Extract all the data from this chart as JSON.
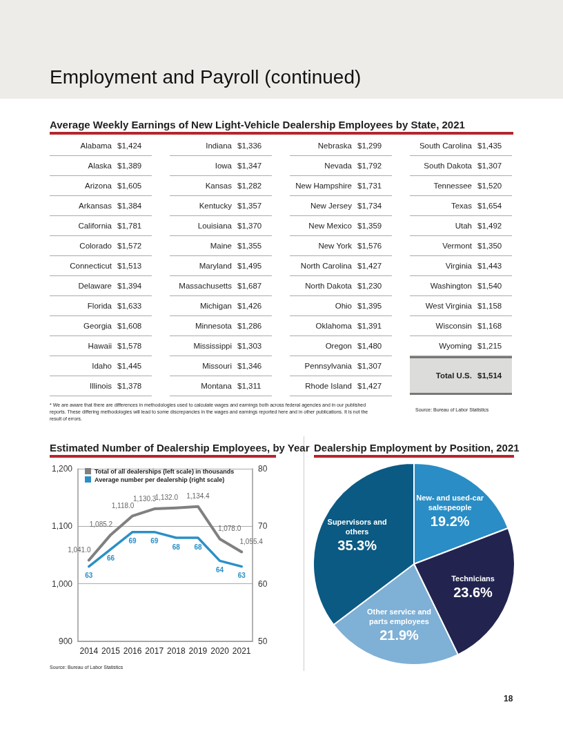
{
  "chart_data": [
    {
      "type": "other",
      "title": "Average Weekly Earnings of New Light-Vehicle Dealership Employees by State, 2021",
      "categories": [
        "Alabama",
        "Alaska",
        "Arizona",
        "Arkansas",
        "California",
        "Colorado",
        "Connecticut",
        "Delaware",
        "Florida",
        "Georgia",
        "Hawaii",
        "Idaho",
        "Illinois",
        "Indiana",
        "Iowa",
        "Kansas",
        "Kentucky",
        "Louisiana",
        "Maine",
        "Maryland",
        "Massachusetts",
        "Michigan",
        "Minnesota",
        "Mississippi",
        "Missouri",
        "Montana",
        "Nebraska",
        "Nevada",
        "New Hampshire",
        "New Jersey",
        "New Mexico",
        "New York",
        "North Carolina",
        "North Dakota",
        "Ohio",
        "Oklahoma",
        "Oregon",
        "Pennsylvania",
        "Rhode Island",
        "South Carolina",
        "South Dakota",
        "Tennessee",
        "Texas",
        "Utah",
        "Vermont",
        "Virginia",
        "Washington",
        "West Virginia",
        "Wisconsin",
        "Wyoming",
        "Total U.S."
      ],
      "values": [
        1424,
        1389,
        1605,
        1384,
        1781,
        1572,
        1513,
        1394,
        1633,
        1608,
        1578,
        1445,
        1378,
        1336,
        1347,
        1282,
        1357,
        1370,
        1355,
        1495,
        1687,
        1426,
        1286,
        1303,
        1346,
        1311,
        1299,
        1792,
        1731,
        1734,
        1359,
        1576,
        1427,
        1230,
        1395,
        1391,
        1480,
        1307,
        1427,
        1435,
        1307,
        1520,
        1654,
        1492,
        1350,
        1443,
        1540,
        1158,
        1168,
        1215,
        1514
      ],
      "value_labels": [
        "$1,424",
        "$1,389",
        "$1,605",
        "$1,384",
        "$1,781",
        "$1,572",
        "$1,513",
        "$1,394",
        "$1,633",
        "$1,608",
        "$1,578",
        "$1,445",
        "$1,378",
        "$1,336",
        "$1,347",
        "$1,282",
        "$1,357",
        "$1,370",
        "$1,355",
        "$1,495",
        "$1,687",
        "$1,426",
        "$1,286",
        "$1,303",
        "$1,346",
        "$1,311",
        "$1,299",
        "$1,792",
        "$1,731",
        "$1,734",
        "$1,359",
        "$1,576",
        "$1,427",
        "$1,230",
        "$1,395",
        "$1,391",
        "$1,480",
        "$1,307",
        "$1,427",
        "$1,435",
        "$1,307",
        "$1,520",
        "$1,654",
        "$1,492",
        "$1,350",
        "$1,443",
        "$1,540",
        "$1,158",
        "$1,168",
        "$1,215",
        "$1,514"
      ],
      "annotations": [
        "Employment and Payroll (continued)",
        "* We are aware that there are differences in methodologies used to calculate wages and earnings both across federal agencies and in our published reports. These differing methodologies will lead to some discrepancies in the wages and earnings reported here and in other publications. It is not the result of errors.",
        "Source: Bureau of Labor Statistics",
        "18"
      ]
    },
    {
      "type": "line",
      "title": "Estimated Number of Dealership Employees, by Year",
      "categories": [
        "2014",
        "2015",
        "2016",
        "2017",
        "2018",
        "2019",
        "2020",
        "2021"
      ],
      "series": [
        {
          "name": "Total of all dealerships (left scale) in thousands",
          "color": "#808080",
          "values": [
            1041.0,
            1085.2,
            1118.0,
            1130.3,
            1132.0,
            1134.4,
            1078.0,
            1055.4
          ],
          "value_labels": [
            "1,041.0",
            "1,085.2",
            "1,118.0",
            "1,130.3",
            "1,132.0",
            "1,134.4",
            "1,078.0",
            "1,055.4"
          ]
        },
        {
          "name": "Average number per dealership (right scale)",
          "color": "#2b8fc7",
          "axis": "y2",
          "values": [
            63,
            66,
            69,
            69,
            68,
            68,
            64,
            63
          ],
          "value_labels": [
            "63",
            "66",
            "69",
            "69",
            "68",
            "68",
            "64",
            "63"
          ]
        }
      ],
      "ylim": [
        900,
        1200
      ],
      "yticks": [
        900,
        {
          "value": 1000,
          "label": "1,000"
        },
        {
          "value": 1100,
          "label": "1,100"
        },
        {
          "value": 1200,
          "label": "1,200"
        }
      ],
      "y2lim": [
        50,
        80
      ],
      "y2ticks": [
        50,
        60,
        70,
        80
      ],
      "grid": "y",
      "legend": "top left",
      "marker": "none",
      "annotations": [
        "Source: Bureau of Labor Statistics"
      ]
    },
    {
      "type": "pie",
      "title": "Dealership Employment by Position, 2021",
      "categories": [
        "New- and used-car salespeople",
        "Technicians",
        "Other service and parts employees",
        "Supervisors and others"
      ],
      "values": [
        19.2,
        23.6,
        21.9,
        35.3
      ],
      "value_labels": [
        "19.2%",
        "23.6%",
        "21.9%",
        "35.3%"
      ],
      "colors": [
        "#2a8dc5",
        "#22244f",
        "#7fb0d6",
        "#0b5a83"
      ]
    }
  ]
}
